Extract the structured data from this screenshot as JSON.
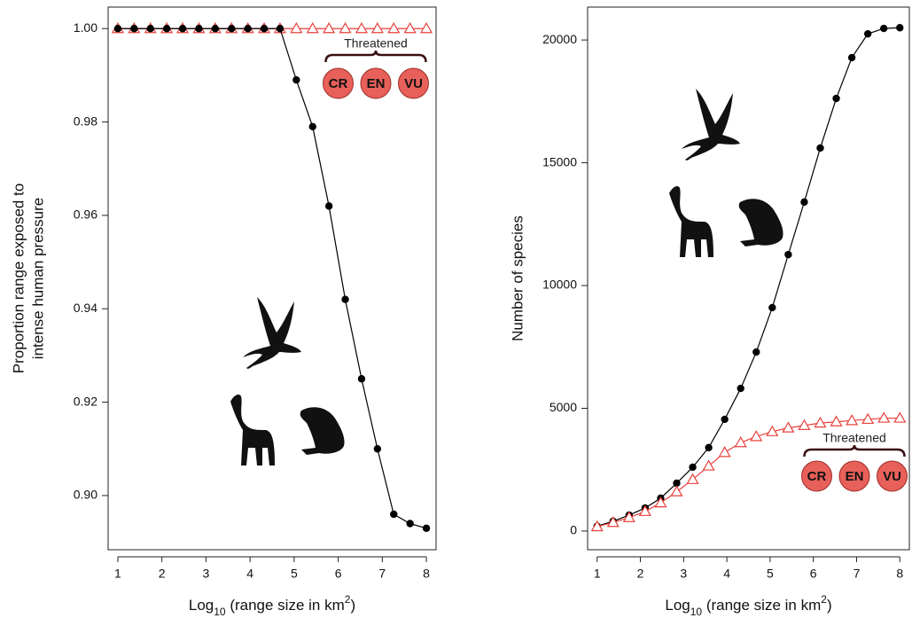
{
  "chart_data": [
    {
      "type": "line",
      "ylabel": [
        "Proportion range exposed to",
        "intense human pressure"
      ],
      "xlabel_parts": [
        "Log",
        "10",
        " (range size in km",
        "2",
        ")"
      ],
      "x": [
        1,
        1.37,
        1.74,
        2.11,
        2.47,
        2.84,
        3.21,
        3.58,
        3.95,
        4.32,
        4.68,
        5.05,
        5.42,
        5.79,
        6.16,
        6.53,
        6.89,
        7.26,
        7.63,
        8
      ],
      "series": [
        {
          "color": "#e8413c",
          "marker": "triangle",
          "values": [
            1,
            1,
            1,
            1,
            1,
            1,
            1,
            1,
            1,
            1,
            1,
            1,
            1,
            1,
            1,
            1,
            1,
            1,
            1,
            1
          ]
        },
        {
          "color": "#000000",
          "marker": "circle",
          "values": [
            1,
            1,
            1,
            1,
            1,
            1,
            1,
            1,
            1,
            1,
            1,
            0.989,
            0.979,
            0.962,
            0.942,
            0.925,
            0.91,
            0.896,
            0.894,
            0.893
          ]
        }
      ],
      "xlim": [
        0.78,
        8.22
      ],
      "xticks": [
        1,
        2,
        3,
        4,
        5,
        6,
        7,
        8
      ],
      "ylim": [
        0.8884,
        1.0046
      ],
      "yticks": [
        {
          "value": 0.9,
          "label": "0.90"
        },
        0.92,
        0.94,
        0.96,
        0.98,
        {
          "value": 1,
          "label": "1.00"
        }
      ],
      "annotation": {
        "label": "Threatened",
        "circles": [
          "CR",
          "EN",
          "VU"
        ]
      }
    },
    {
      "type": "line",
      "ylabel": [
        "Number of species"
      ],
      "xlabel_parts": [
        "Log",
        "10",
        " (range size in km",
        "2",
        ")"
      ],
      "x": [
        1,
        1.37,
        1.74,
        2.11,
        2.47,
        2.84,
        3.21,
        3.58,
        3.95,
        4.32,
        4.68,
        5.05,
        5.42,
        5.79,
        6.16,
        6.53,
        6.89,
        7.26,
        7.63,
        8
      ],
      "series": [
        {
          "color": "#000000",
          "marker": "circle",
          "values": [
            200,
            400,
            650,
            940,
            1340,
            1950,
            2600,
            3400,
            4550,
            5810,
            7290,
            9100,
            11260,
            13400,
            15600,
            17620,
            19280,
            20250,
            20470,
            20500
          ]
        },
        {
          "color": "#e8413c",
          "marker": "triangle",
          "values": [
            180,
            350,
            550,
            800,
            1150,
            1600,
            2100,
            2650,
            3200,
            3600,
            3850,
            4050,
            4200,
            4300,
            4400,
            4450,
            4500,
            4550,
            4600,
            4600
          ]
        }
      ],
      "xlim": [
        0.78,
        8.22
      ],
      "xticks": [
        1,
        2,
        3,
        4,
        5,
        6,
        7,
        8
      ],
      "ylim": [
        -760,
        21340
      ],
      "yticks": [
        0,
        5000,
        10000,
        15000,
        20000
      ],
      "annotation": {
        "label": "Threatened",
        "circles": [
          "CR",
          "EN",
          "VU"
        ]
      }
    }
  ]
}
